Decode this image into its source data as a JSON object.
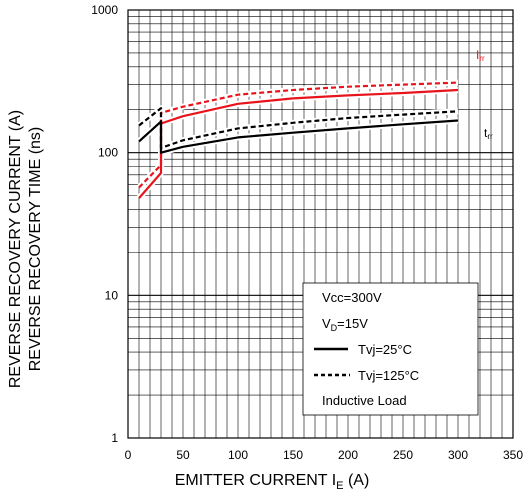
{
  "chart_data": {
    "type": "line",
    "xlabel": "EMITTER CURRENT I",
    "xlabel_sub": "E",
    "xlabel_unit": " (A)",
    "ylabel_line1": "REVERSE RECOVERY CURRENT (A)",
    "ylabel_line2": "REVERSE RECOVERY TIME (ns)",
    "xlim": [
      0,
      350
    ],
    "ylim": [
      1,
      1000
    ],
    "y_scale": "log",
    "grid": true,
    "x_ticks": [
      "0",
      "50",
      "100",
      "150",
      "200",
      "250",
      "300",
      "350"
    ],
    "y_ticks": [
      "1",
      "10",
      "100",
      "1000"
    ],
    "series": [
      {
        "name": "Irr",
        "condition": "Tvj=25°C",
        "color": "#e8141c",
        "dash": false,
        "x": [
          10,
          30,
          30,
          50,
          100,
          150,
          200,
          250,
          300
        ],
        "y": [
          48,
          72,
          160,
          180,
          220,
          240,
          252,
          262,
          275
        ]
      },
      {
        "name": "Irr",
        "condition": "Tvj=125°C",
        "color": "#e8141c",
        "dash": true,
        "x": [
          10,
          30,
          30,
          50,
          100,
          150,
          200,
          250,
          300
        ],
        "y": [
          57,
          82,
          190,
          210,
          255,
          275,
          290,
          300,
          310
        ]
      },
      {
        "name": "trr",
        "condition": "Tvj=25°C",
        "color": "#000000",
        "dash": false,
        "x": [
          10,
          30,
          30,
          50,
          100,
          150,
          200,
          250,
          300
        ],
        "y": [
          120,
          165,
          100,
          110,
          128,
          138,
          148,
          158,
          168
        ]
      },
      {
        "name": "trr",
        "condition": "Tvj=125°C",
        "color": "#000000",
        "dash": true,
        "x": [
          10,
          30,
          30,
          50,
          100,
          150,
          200,
          250,
          300
        ],
        "y": [
          155,
          205,
          108,
          122,
          148,
          162,
          175,
          185,
          195
        ]
      }
    ],
    "series_labels": {
      "irr_main": "I",
      "irr_sub": "rr",
      "trr_main": "t",
      "trr_sub": "rr"
    },
    "legend": {
      "placement": "bottom-right",
      "vcc": "Vcc=300V",
      "vd_main": "V",
      "vd_sub": "D",
      "vd_rest": "=15V",
      "solid_label": "Tvj=25°C",
      "dashed_label": "Tvj=125°C",
      "load": "Inductive Load"
    }
  }
}
